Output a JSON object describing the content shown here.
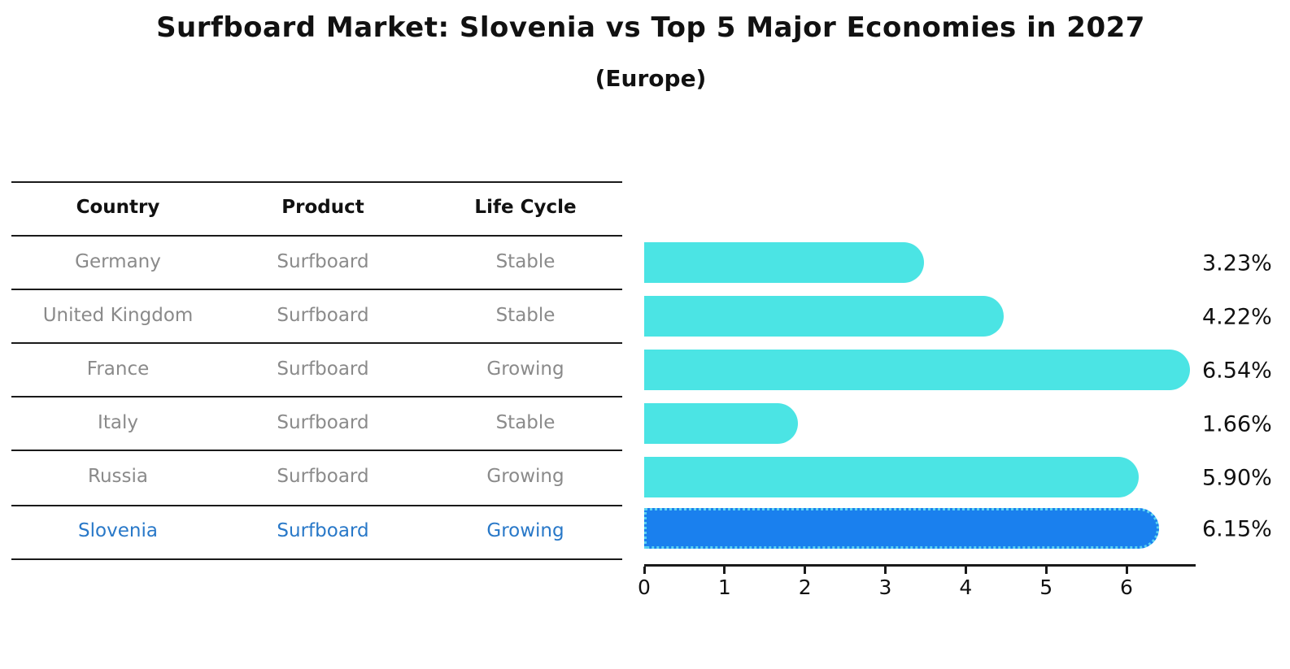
{
  "chart_data": {
    "type": "bar",
    "orientation": "horizontal",
    "title": "Surfboard Market: Slovenia vs Top 5 Major Economies in 2027",
    "subtitle": "(Europe)",
    "categories": [
      "Germany",
      "United Kingdom",
      "France",
      "Italy",
      "Russia",
      "Slovenia"
    ],
    "values": [
      3.23,
      4.22,
      6.54,
      1.66,
      5.9,
      6.15
    ],
    "value_labels": [
      "3.23%",
      "4.22%",
      "6.54%",
      "1.66%",
      "5.90%",
      "6.15%"
    ],
    "highlight_index": 5,
    "x_ticks": [
      0,
      1,
      2,
      3,
      4,
      5,
      6
    ],
    "xlim": [
      0,
      6.86
    ],
    "grid": false,
    "legend": "none",
    "colors": {
      "bar_default": "#4be4e4",
      "bar_highlight": "#1a80ee",
      "bar_highlight_border": "#5ad2f0",
      "axis": "#1a1a1a",
      "label_text": "#111111"
    }
  },
  "table": {
    "headers": {
      "country": "Country",
      "product": "Product",
      "life_cycle": "Life Cycle"
    },
    "rows": [
      {
        "country": "Germany",
        "product": "Surfboard",
        "life_cycle": "Stable",
        "highlight": false
      },
      {
        "country": "United Kingdom",
        "product": "Surfboard",
        "life_cycle": "Stable",
        "highlight": false
      },
      {
        "country": "France",
        "product": "Surfboard",
        "life_cycle": "Growing",
        "highlight": false
      },
      {
        "country": "Italy",
        "product": "Surfboard",
        "life_cycle": "Stable",
        "highlight": false
      },
      {
        "country": "Russia",
        "product": "Surfboard",
        "life_cycle": "Growing",
        "highlight": false
      },
      {
        "country": "Slovenia",
        "product": "Surfboard",
        "life_cycle": "Growing",
        "highlight": true
      }
    ],
    "text_colors": {
      "normal": "#8a8a8a",
      "highlight": "#2878c8",
      "header": "#111111"
    }
  }
}
